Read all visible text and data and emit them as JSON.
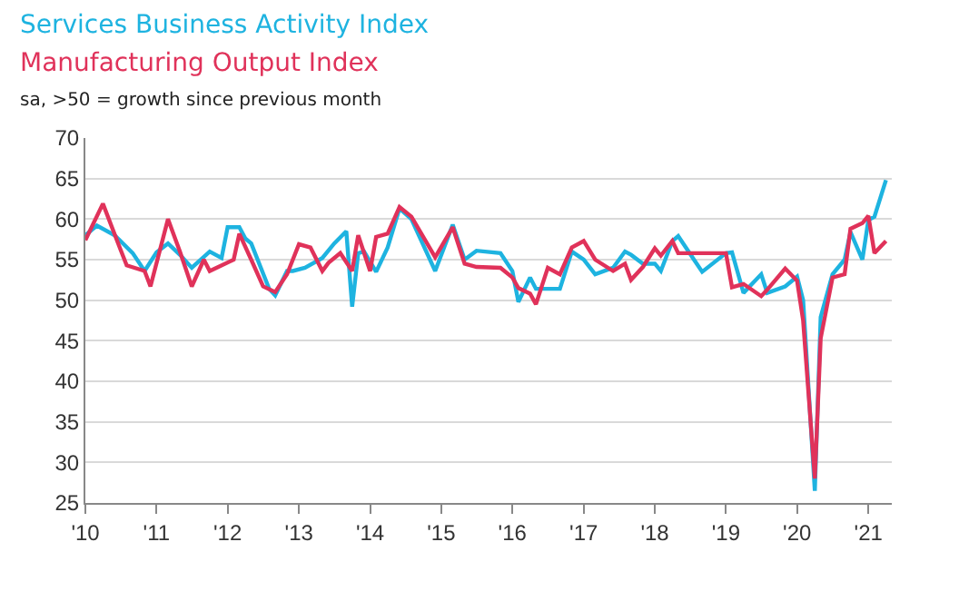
{
  "chart_data": {
    "type": "line",
    "subtitle": "sa, >50 = growth since previous month",
    "series": [
      {
        "name": "Services Business Activity Index",
        "color": "#1eb3e0",
        "x": [
          "2010-01",
          "2010-03",
          "2010-06",
          "2010-09",
          "2010-11",
          "2011-01",
          "2011-03",
          "2011-05",
          "2011-07",
          "2011-10",
          "2011-12",
          "2012-01",
          "2012-03",
          "2012-04",
          "2012-05",
          "2012-08",
          "2012-09",
          "2012-11",
          "2012-12",
          "2013-02",
          "2013-05",
          "2013-07",
          "2013-09",
          "2013-10",
          "2013-11",
          "2013-12",
          "2014-02",
          "2014-04",
          "2014-06",
          "2014-08",
          "2014-12",
          "2015-03",
          "2015-05",
          "2015-07",
          "2015-11",
          "2016-01",
          "2016-02",
          "2016-04",
          "2016-05",
          "2016-07",
          "2016-09",
          "2016-11",
          "2017-01",
          "2017-03",
          "2017-06",
          "2017-08",
          "2017-09",
          "2017-11",
          "2018-01",
          "2018-02",
          "2018-04",
          "2018-05",
          "2018-09",
          "2019-01",
          "2019-02",
          "2019-04",
          "2019-07",
          "2019-08",
          "2019-11",
          "2020-01",
          "2020-02",
          "2020-04",
          "2020-05",
          "2020-07",
          "2020-09",
          "2020-10",
          "2020-12",
          "2021-01",
          "2021-02",
          "2021-04"
        ],
        "values": [
          58,
          59.2,
          58,
          55.8,
          53.6,
          55.9,
          57,
          55.6,
          54,
          56,
          55.2,
          59,
          59,
          57.6,
          57,
          51.4,
          50.6,
          53.6,
          53.6,
          54,
          55.2,
          57,
          58.5,
          49.2,
          55.8,
          56,
          53.5,
          56.5,
          61.3,
          60,
          53.6,
          59.3,
          55,
          56.1,
          55.8,
          53.6,
          49.8,
          52.8,
          51.4,
          51.4,
          51.4,
          56,
          55,
          53.2,
          54,
          56,
          55.6,
          54.5,
          54.5,
          53.6,
          57.3,
          57.9,
          53.5,
          55.8,
          55.9,
          50.9,
          53.2,
          50.9,
          51.7,
          52.9,
          50,
          26.5,
          47.9,
          53.2,
          55,
          58.4,
          55,
          59.9,
          60.3,
          64.8
        ]
      },
      {
        "name": "Manufacturing Output Index",
        "color": "#e0325a",
        "x": [
          "2010-01",
          "2010-04",
          "2010-07",
          "2010-08",
          "2010-11",
          "2010-12",
          "2011-03",
          "2011-05",
          "2011-07",
          "2011-09",
          "2011-10",
          "2012-02",
          "2012-03",
          "2012-05",
          "2012-07",
          "2012-09",
          "2012-11",
          "2013-01",
          "2013-03",
          "2013-05",
          "2013-06",
          "2013-08",
          "2013-10",
          "2013-11",
          "2014-01",
          "2014-02",
          "2014-04",
          "2014-06",
          "2014-08",
          "2014-12",
          "2015-03",
          "2015-05",
          "2015-07",
          "2015-11",
          "2016-01",
          "2016-02",
          "2016-04",
          "2016-05",
          "2016-07",
          "2016-09",
          "2016-11",
          "2017-01",
          "2017-03",
          "2017-06",
          "2017-08",
          "2017-09",
          "2017-11",
          "2018-01",
          "2018-02",
          "2018-04",
          "2018-05",
          "2018-09",
          "2019-01",
          "2019-02",
          "2019-04",
          "2019-07",
          "2019-08",
          "2019-11",
          "2020-01",
          "2020-02",
          "2020-04",
          "2020-05",
          "2020-07",
          "2020-09",
          "2020-10",
          "2020-12",
          "2021-01",
          "2021-02",
          "2021-04"
        ],
        "values": [
          57.4,
          61.9,
          56.2,
          54.3,
          53.6,
          51.7,
          60,
          56,
          51.7,
          55,
          53.6,
          55,
          58.2,
          55,
          51.7,
          51,
          53.2,
          56.9,
          56.5,
          53.6,
          54.6,
          55.8,
          53.6,
          58,
          53.6,
          57.8,
          58.2,
          61.5,
          60.3,
          55.3,
          59,
          54.5,
          54.1,
          54,
          52.8,
          51.5,
          50.8,
          49.5,
          54,
          53.2,
          56.5,
          57.3,
          55,
          53.6,
          54.5,
          52.5,
          54.1,
          56.4,
          55.5,
          57.3,
          55.8,
          55.8,
          55.8,
          51.6,
          52,
          50.5,
          51.3,
          53.9,
          52.4,
          47.5,
          28,
          45.3,
          52.8,
          53.2,
          58.8,
          59.5,
          60.4,
          55.8,
          57.3
        ]
      }
    ],
    "xlim": [
      "2010-01-01",
      "2021-05-01"
    ],
    "xticks": [
      {
        "value": "2010-01-01",
        "label": "'10"
      },
      {
        "value": "2011-01-01",
        "label": "'11"
      },
      {
        "value": "2012-01-01",
        "label": "'12"
      },
      {
        "value": "2013-01-01",
        "label": "'13"
      },
      {
        "value": "2014-01-01",
        "label": "'14"
      },
      {
        "value": "2015-01-01",
        "label": "'15"
      },
      {
        "value": "2016-01-01",
        "label": "'16"
      },
      {
        "value": "2017-01-01",
        "label": "'17"
      },
      {
        "value": "2018-01-01",
        "label": "'18"
      },
      {
        "value": "2019-01-01",
        "label": "'19"
      },
      {
        "value": "2020-01-01",
        "label": "'20"
      },
      {
        "value": "2021-01-01",
        "label": "'21"
      }
    ],
    "ylim": [
      25,
      70
    ],
    "yticks": [
      25,
      30,
      35,
      40,
      45,
      50,
      55,
      60,
      65,
      70
    ],
    "grid": "y",
    "marker": "none",
    "line_style": "solid"
  }
}
